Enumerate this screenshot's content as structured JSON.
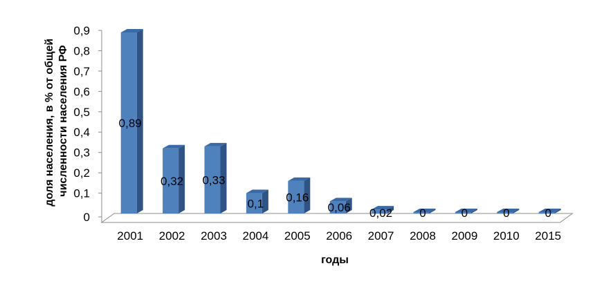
{
  "chart_data": {
    "type": "bar",
    "categories": [
      "2001",
      "2002",
      "2003",
      "2004",
      "2005",
      "2006",
      "2007",
      "2008",
      "2009",
      "2010",
      "2015"
    ],
    "values": [
      0.89,
      0.32,
      0.33,
      0.1,
      0.16,
      0.06,
      0.02,
      0,
      0,
      0,
      0
    ],
    "value_labels": [
      "0,89",
      "0,32",
      "0,33",
      "0,1",
      "0,16",
      "0,06",
      "0,02",
      "0",
      "0",
      "0",
      "0"
    ],
    "y_ticks": [
      "0",
      "0,1",
      "0,2",
      "0,3",
      "0,4",
      "0,5",
      "0,6",
      "0,7",
      "0,8",
      "0,9"
    ],
    "ylim": [
      0,
      0.9
    ],
    "xlabel": "годы",
    "ylabel_lines": [
      "доля населения, в % от общей",
      "численности населения РФ"
    ],
    "grid": false,
    "legend": "none",
    "colors": {
      "bar_front": "#4f81bd",
      "bar_side": "#2f5385",
      "bar_top": "#3a6aa6",
      "floor": "#ffffff",
      "axis": "#8c8c8c"
    }
  }
}
